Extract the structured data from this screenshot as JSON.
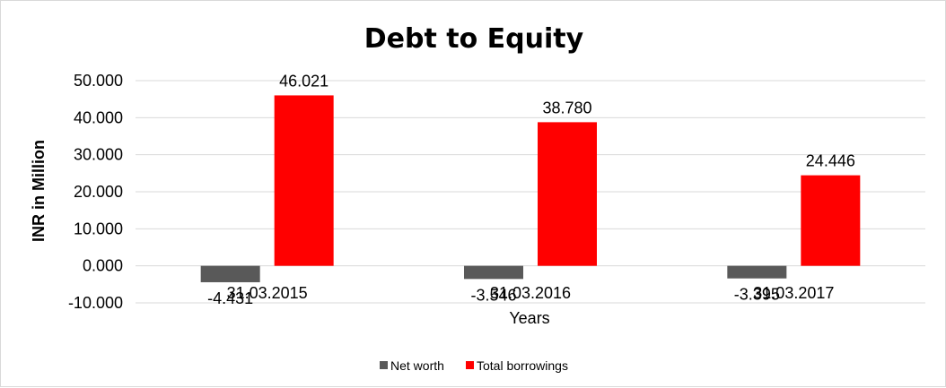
{
  "chart_data": {
    "type": "bar",
    "title": "Debt to Equity",
    "xlabel": "Years",
    "ylabel": "INR in Million",
    "categories": [
      "31.03.2015",
      "31.03.2016",
      "31.03.2017"
    ],
    "series": [
      {
        "name": "Net worth",
        "color": "#595959",
        "values": [
          -4.431,
          -3.546,
          -3.395
        ],
        "labels": [
          "-4.431",
          "-3.546",
          "-3.395"
        ]
      },
      {
        "name": "Total borrowings",
        "color": "#ff0000",
        "values": [
          46.021,
          38.78,
          24.446
        ],
        "labels": [
          "46.021",
          "38.780",
          "24.446"
        ]
      }
    ],
    "ylim": [
      -10,
      50
    ],
    "yticks": [
      50,
      40,
      30,
      20,
      10,
      0,
      -10
    ],
    "ytick_labels": [
      "50.000",
      "40.000",
      "30.000",
      "20.000",
      "10.000",
      "0.000",
      "-10.000"
    ],
    "grid": true,
    "legend_position": "bottom"
  }
}
